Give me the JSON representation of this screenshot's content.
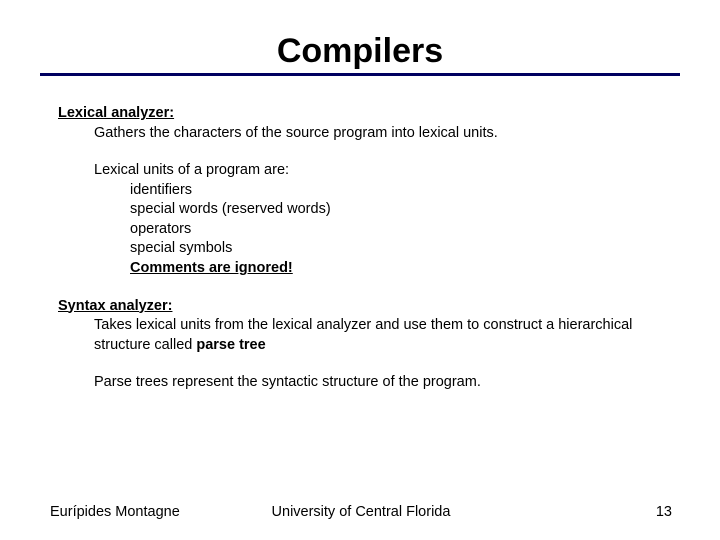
{
  "title": "Compilers",
  "colors": {
    "text": "#000000",
    "rule": "#000060",
    "background": "#ffffff"
  },
  "typography": {
    "title_fontsize": 34,
    "title_weight": "bold",
    "body_fontsize": 14.5,
    "font_family": "Arial"
  },
  "sections": {
    "lexical": {
      "heading": "Lexical analyzer:",
      "desc": "Gathers the characters of the source program into lexical units.",
      "units_heading": "Lexical units of a program are:",
      "units": [
        "identifiers",
        "special words (reserved words)",
        "operators",
        "special symbols"
      ],
      "units_emph": "Comments are ignored!"
    },
    "syntax": {
      "heading": "Syntax analyzer:",
      "desc_prefix": "Takes lexical units from the lexical analyzer and use them to construct a hierarchical structure called ",
      "desc_bold": "parse tree",
      "closing": "Parse trees represent the syntactic structure of the program."
    }
  },
  "footer": {
    "author": "Eurípides Montagne",
    "institution": "University of Central Florida",
    "page": "13"
  }
}
